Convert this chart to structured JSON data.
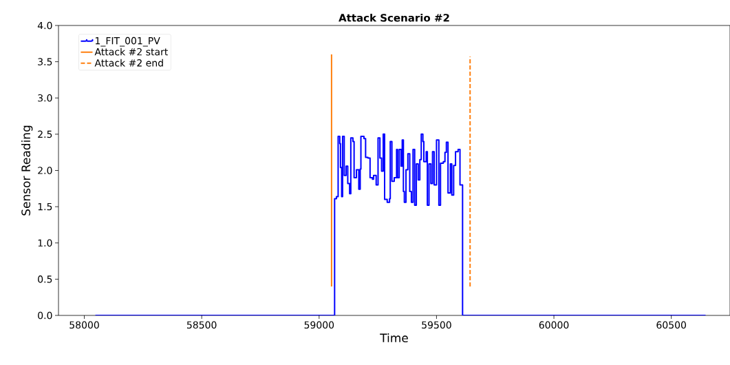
{
  "chart_data": {
    "type": "step",
    "title": "Attack Scenario #2",
    "xlabel": "Time",
    "ylabel": "Sensor Reading",
    "xlim": [
      57890,
      60750
    ],
    "ylim": [
      0,
      4
    ],
    "xticks": [
      58000,
      58500,
      59000,
      59500,
      60000,
      60500
    ],
    "yticks": [
      {
        "value": 0,
        "label": "0.0"
      },
      {
        "value": 0.5,
        "label": "0.5"
      },
      {
        "value": 1,
        "label": "1.0"
      },
      {
        "value": 1.5,
        "label": "1.5"
      },
      {
        "value": 2,
        "label": "2.0"
      },
      {
        "value": 2.5,
        "label": "2.5"
      },
      {
        "value": 3,
        "label": "3.0"
      },
      {
        "value": 3.5,
        "label": "3.5"
      },
      {
        "value": 4,
        "label": "4.0"
      }
    ],
    "grid": false,
    "legend": "top left",
    "marker": "none",
    "series": [
      {
        "name": "1_FIT_001_PV",
        "color": "#0000ff",
        "x": [
          58047,
          59066,
          59074,
          59081,
          59088,
          59091,
          59096,
          59100,
          59107,
          59115,
          59122,
          59130,
          59135,
          59144,
          59149,
          59159,
          59169,
          59175,
          59178,
          59191,
          59198,
          59208,
          59217,
          59227,
          59232,
          59243,
          59251,
          59259,
          59266,
          59273,
          59279,
          59290,
          59300,
          59303,
          59310,
          59320,
          59330,
          59334,
          59341,
          59349,
          59354,
          59359,
          59363,
          59370,
          59378,
          59386,
          59393,
          59400,
          59407,
          59414,
          59422,
          59429,
          59435,
          59442,
          59446,
          59456,
          59461,
          59468,
          59476,
          59483,
          59490,
          59500,
          59510,
          59517,
          59529,
          59536,
          59542,
          59549,
          59559,
          59565,
          59573,
          59581,
          59592,
          59600,
          59611,
          60646
        ],
        "values": [
          0,
          1.61,
          1.64,
          2.47,
          2.37,
          2.04,
          1.64,
          2.47,
          1.93,
          2.06,
          1.82,
          1.68,
          2.45,
          2.4,
          1.9,
          2.01,
          1.74,
          2.02,
          2.47,
          2.44,
          2.18,
          2.17,
          1.9,
          1.88,
          1.93,
          1.8,
          2.45,
          2.17,
          1.99,
          2.5,
          1.6,
          1.56,
          1.61,
          2.4,
          1.85,
          1.9,
          2.29,
          1.9,
          2.29,
          2.06,
          2.42,
          1.71,
          1.56,
          2.01,
          2.23,
          1.71,
          1.56,
          2.29,
          1.52,
          2.09,
          1.87,
          2.15,
          2.5,
          2.4,
          2.12,
          2.26,
          1.52,
          2.09,
          1.82,
          2.26,
          1.8,
          2.42,
          1.52,
          2.1,
          2.12,
          2.25,
          2.39,
          1.69,
          2.09,
          1.66,
          2.07,
          2.26,
          2.29,
          1.8,
          0,
          0
        ]
      },
      {
        "name": "Attack #2 start",
        "color": "#ff7f0e",
        "type": "line",
        "line_style": "solid",
        "x": [
          59053,
          59053
        ],
        "values": [
          0.4,
          3.6
        ]
      },
      {
        "name": "Attack #2 end",
        "color": "#ff7f0e",
        "type": "line",
        "line_style": "dashed",
        "x": [
          59643,
          59643
        ],
        "values": [
          0.4,
          3.57
        ]
      }
    ]
  }
}
